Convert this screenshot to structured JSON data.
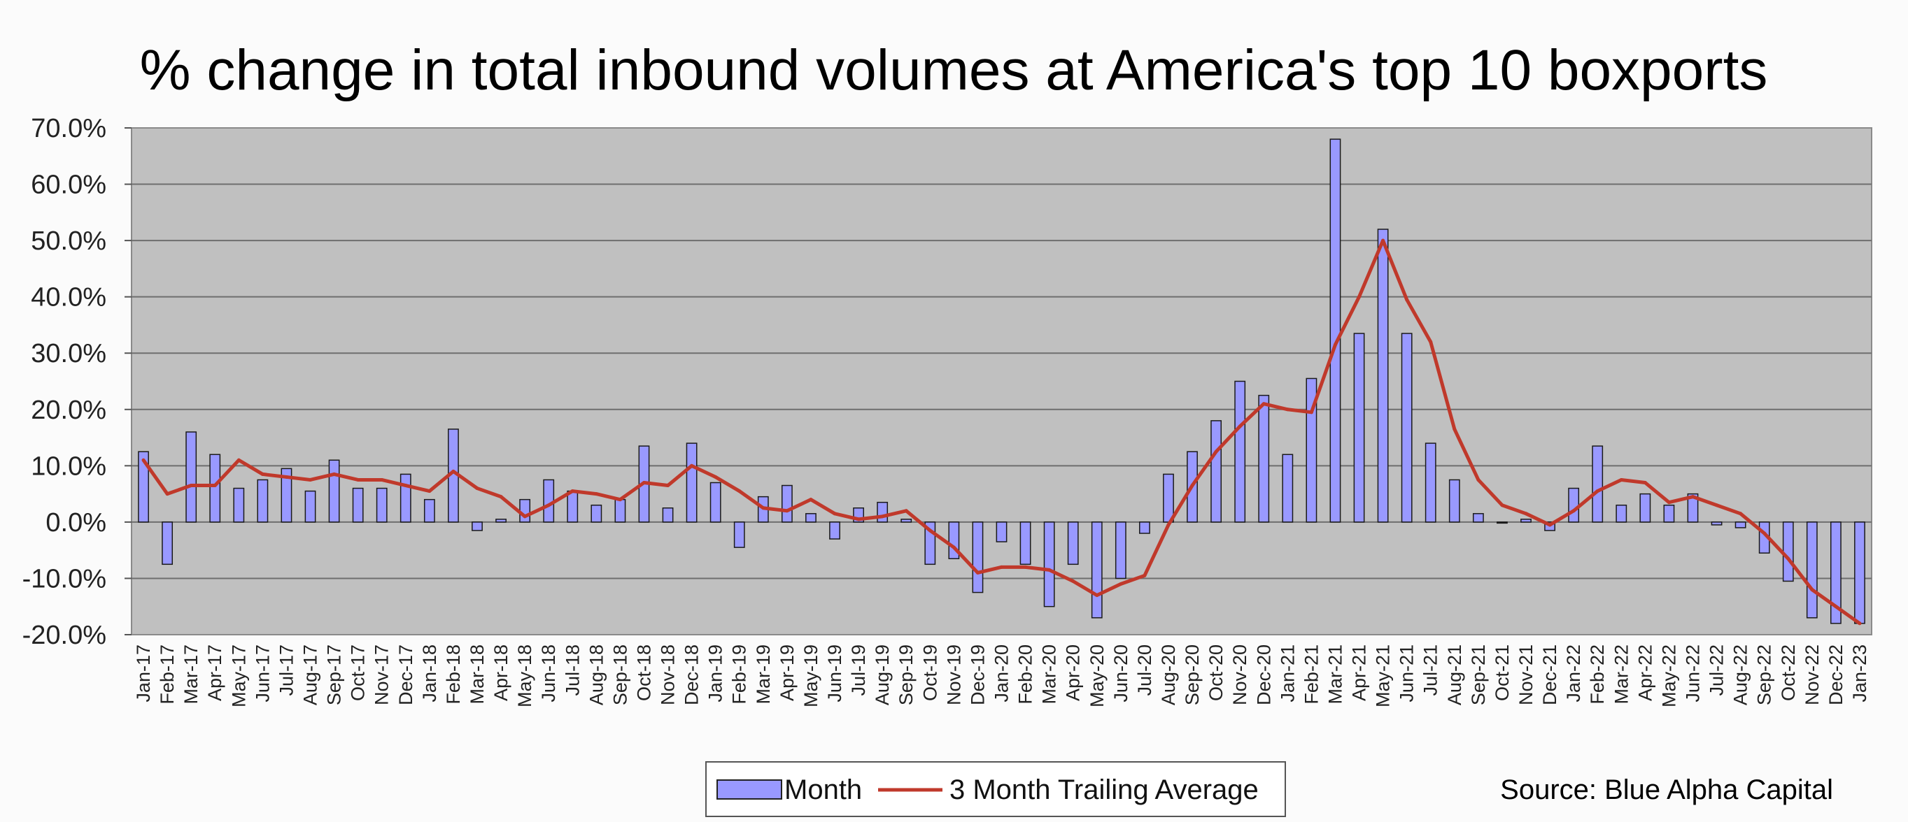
{
  "chart_data": {
    "type": "bar",
    "title": "% change in total inbound volumes at America's top 10 boxports",
    "source": "Source: Blue Alpha Capital",
    "ylim": [
      -20,
      70
    ],
    "yticks": [
      70,
      60,
      50,
      40,
      30,
      20,
      10,
      0,
      -10,
      -20
    ],
    "ytick_labels": [
      "70.0%",
      "60.0%",
      "50.0%",
      "40.0%",
      "30.0%",
      "20.0%",
      "10.0%",
      "0.0%",
      "-10.0%",
      "-20.0%"
    ],
    "grid": true,
    "legend_position": "bottom-center",
    "categories": [
      "Jan-17",
      "Feb-17",
      "Mar-17",
      "Apr-17",
      "May-17",
      "Jun-17",
      "Jul-17",
      "Aug-17",
      "Sep-17",
      "Oct-17",
      "Nov-17",
      "Dec-17",
      "Jan-18",
      "Feb-18",
      "Mar-18",
      "Apr-18",
      "May-18",
      "Jun-18",
      "Jul-18",
      "Aug-18",
      "Sep-18",
      "Oct-18",
      "Nov-18",
      "Dec-18",
      "Jan-19",
      "Feb-19",
      "Mar-19",
      "Apr-19",
      "May-19",
      "Jun-19",
      "Jul-19",
      "Aug-19",
      "Sep-19",
      "Oct-19",
      "Nov-19",
      "Dec-19",
      "Jan-20",
      "Feb-20",
      "Mar-20",
      "Apr-20",
      "May-20",
      "Jun-20",
      "Jul-20",
      "Aug-20",
      "Sep-20",
      "Oct-20",
      "Nov-20",
      "Dec-20",
      "Jan-21",
      "Feb-21",
      "Mar-21",
      "Apr-21",
      "May-21",
      "Jun-21",
      "Jul-21",
      "Aug-21",
      "Sep-21",
      "Oct-21",
      "Nov-21",
      "Dec-21",
      "Jan-22",
      "Feb-22",
      "Mar-22",
      "Apr-22",
      "May-22",
      "Jun-22",
      "Jul-22",
      "Aug-22",
      "Sep-22",
      "Oct-22",
      "Nov-22",
      "Dec-22",
      "Jan-23"
    ],
    "series": [
      {
        "name": "Month",
        "type": "bar",
        "color": "#9999ff",
        "values": [
          12.5,
          -7.5,
          16,
          12,
          6,
          7.5,
          9.5,
          5.5,
          11,
          6,
          6,
          8.5,
          4,
          16.5,
          -1.5,
          0.5,
          4,
          7.5,
          5.5,
          3,
          4,
          13.5,
          2.5,
          14,
          7,
          -4.5,
          4.5,
          6.5,
          1.5,
          -3,
          2.5,
          3.5,
          0.5,
          -7.5,
          -6.5,
          -12.5,
          -3.5,
          -7.5,
          -15,
          -7.5,
          -17,
          -10,
          -2,
          8.5,
          12.5,
          18,
          25,
          22.5,
          12,
          25.5,
          68,
          33.5,
          52,
          33.5,
          14,
          7.5,
          1.5,
          0,
          0.5,
          -1.5,
          6,
          13.5,
          3,
          5,
          3,
          5,
          -0.5,
          -1,
          -5.5,
          -10.5,
          -17,
          -18,
          -18
        ]
      },
      {
        "name": "3 Month Trailing Average",
        "type": "line",
        "color": "#c0392b",
        "values": [
          11,
          5,
          6.5,
          6.5,
          11,
          8.5,
          8,
          7.5,
          8.5,
          7.5,
          7.5,
          6.5,
          5.5,
          9,
          6,
          4.5,
          1,
          3,
          5.5,
          5,
          4,
          7,
          6.5,
          10,
          8,
          5.5,
          2.5,
          2,
          4,
          1.5,
          0.5,
          1,
          2,
          -1.5,
          -4.5,
          -9,
          -8,
          -8,
          -8.5,
          -10.5,
          -13,
          -11,
          -9.5,
          -0.5,
          6.5,
          12.5,
          17,
          21,
          20,
          19.5,
          31.5,
          40,
          50,
          39.5,
          32,
          16.5,
          7.5,
          3,
          1.5,
          -0.5,
          2,
          5.5,
          7.5,
          7,
          3.5,
          4.5,
          3,
          1.5,
          -2,
          -6.5,
          -12,
          -15,
          -18
        ]
      }
    ]
  }
}
